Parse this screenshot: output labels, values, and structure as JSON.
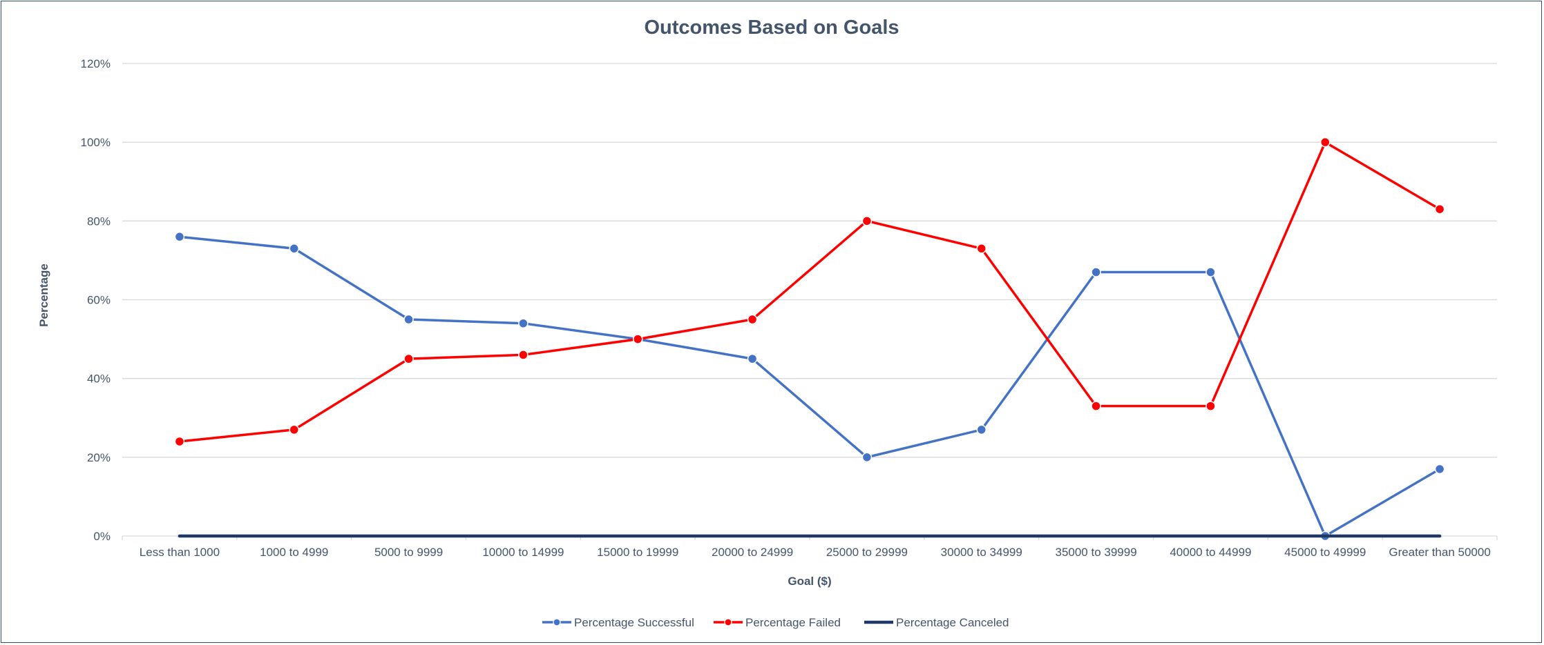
{
  "chart_data": {
    "type": "line",
    "title": "Outcomes Based on Goals",
    "xlabel": "Goal ($)",
    "ylabel": "Percentage",
    "categories": [
      "Less than 1000",
      "1000 to 4999",
      "5000 to 9999",
      "10000 to 14999",
      "15000 to 19999",
      "20000 to 24999",
      "25000 to 29999",
      "30000 to 34999",
      "35000 to 39999",
      "40000 to 44999",
      "45000 to 49999",
      "Greater than 50000"
    ],
    "y_ticks": [
      "0%",
      "20%",
      "40%",
      "60%",
      "80%",
      "100%",
      "120%"
    ],
    "ylim": [
      0,
      1.2
    ],
    "grid": true,
    "legend_position": "bottom",
    "series": [
      {
        "name": "Percentage Successful",
        "color": "#4472c4",
        "markers": true,
        "values": [
          0.76,
          0.73,
          0.55,
          0.54,
          0.5,
          0.45,
          0.2,
          0.27,
          0.67,
          0.67,
          0.0,
          0.17
        ]
      },
      {
        "name": "Percentage Failed",
        "color": "#ff0000",
        "markers": true,
        "values": [
          0.24,
          0.27,
          0.45,
          0.46,
          0.5,
          0.55,
          0.8,
          0.73,
          0.33,
          0.33,
          1.0,
          0.83
        ]
      },
      {
        "name": "Percentage Canceled",
        "color": "#203864",
        "markers": false,
        "values": [
          0,
          0,
          0,
          0,
          0,
          0,
          0,
          0,
          0,
          0,
          0,
          0
        ]
      }
    ]
  }
}
